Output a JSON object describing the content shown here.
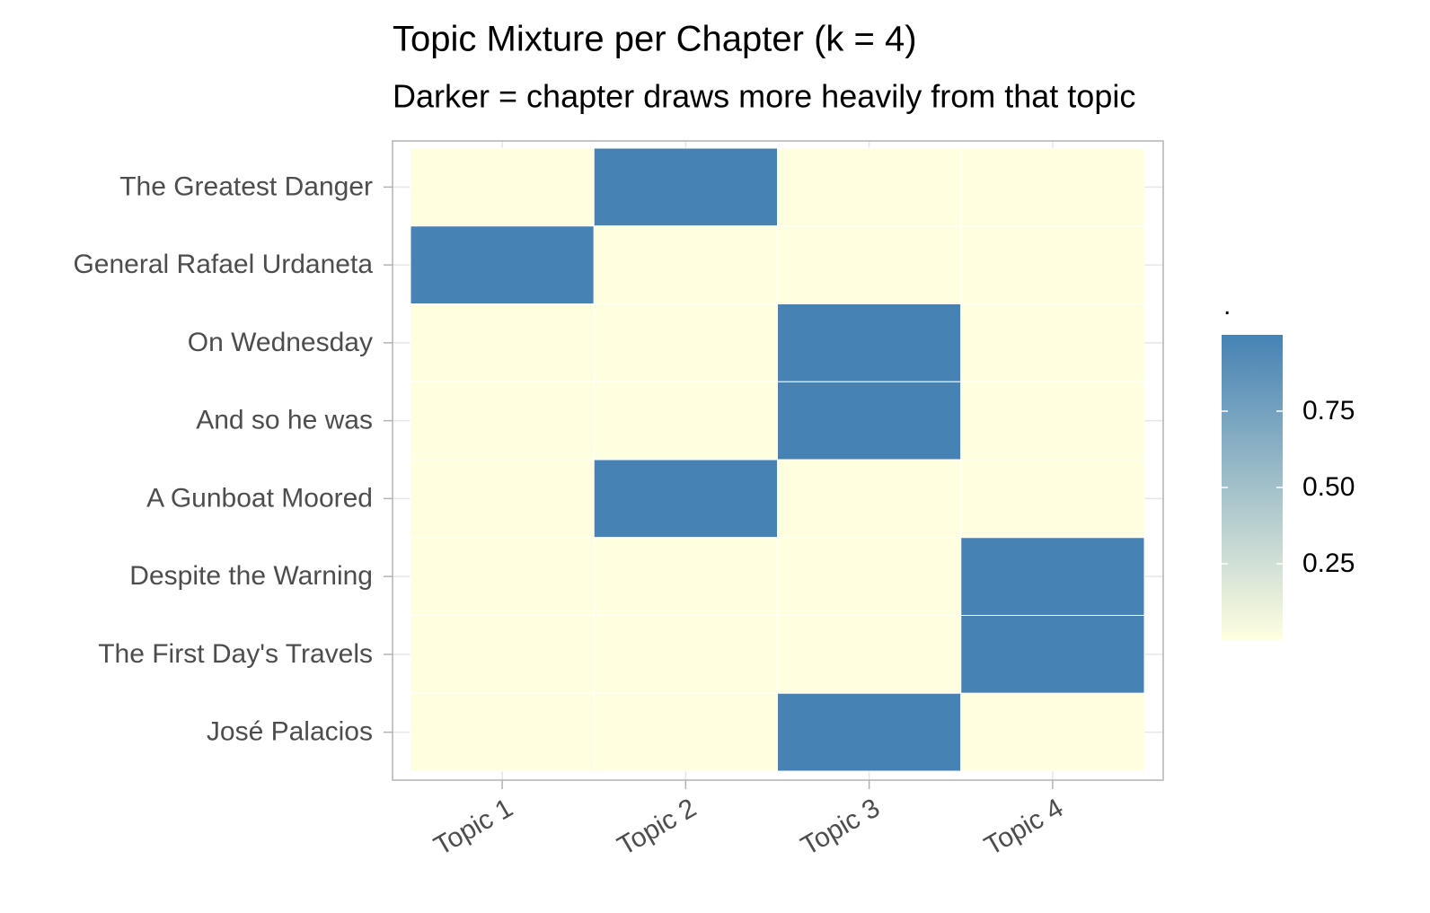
{
  "chart_data": {
    "type": "heatmap",
    "title": "Topic Mixture per Chapter (k = 4)",
    "subtitle": "Darker = chapter draws more heavily from that topic",
    "x_categories": [
      "Topic 1",
      "Topic 2",
      "Topic 3",
      "Topic 4"
    ],
    "y_categories": [
      "The Greatest Danger",
      "General Rafael Urdaneta",
      "On Wednesday",
      "And so he was",
      "A Gunboat Moored",
      "Despite the Warning",
      "The First Day's Travels",
      "José Palacios"
    ],
    "values": [
      [
        0,
        1,
        0,
        0
      ],
      [
        1,
        0,
        0,
        0
      ],
      [
        0,
        0,
        1,
        0
      ],
      [
        0,
        0,
        1,
        0
      ],
      [
        0,
        1,
        0,
        0
      ],
      [
        0,
        0,
        0,
        1
      ],
      [
        0,
        0,
        0,
        1
      ],
      [
        0,
        0,
        1,
        0
      ]
    ],
    "low_color": "#ffffe0",
    "high_color": "#4682b4",
    "legend_title": ".",
    "colorbar_lim": [
      0,
      1
    ],
    "colorbar_ticks": [
      0.25,
      {
        "value": 0.5,
        "label": "0.50"
      },
      0.75
    ],
    "grid": true
  }
}
